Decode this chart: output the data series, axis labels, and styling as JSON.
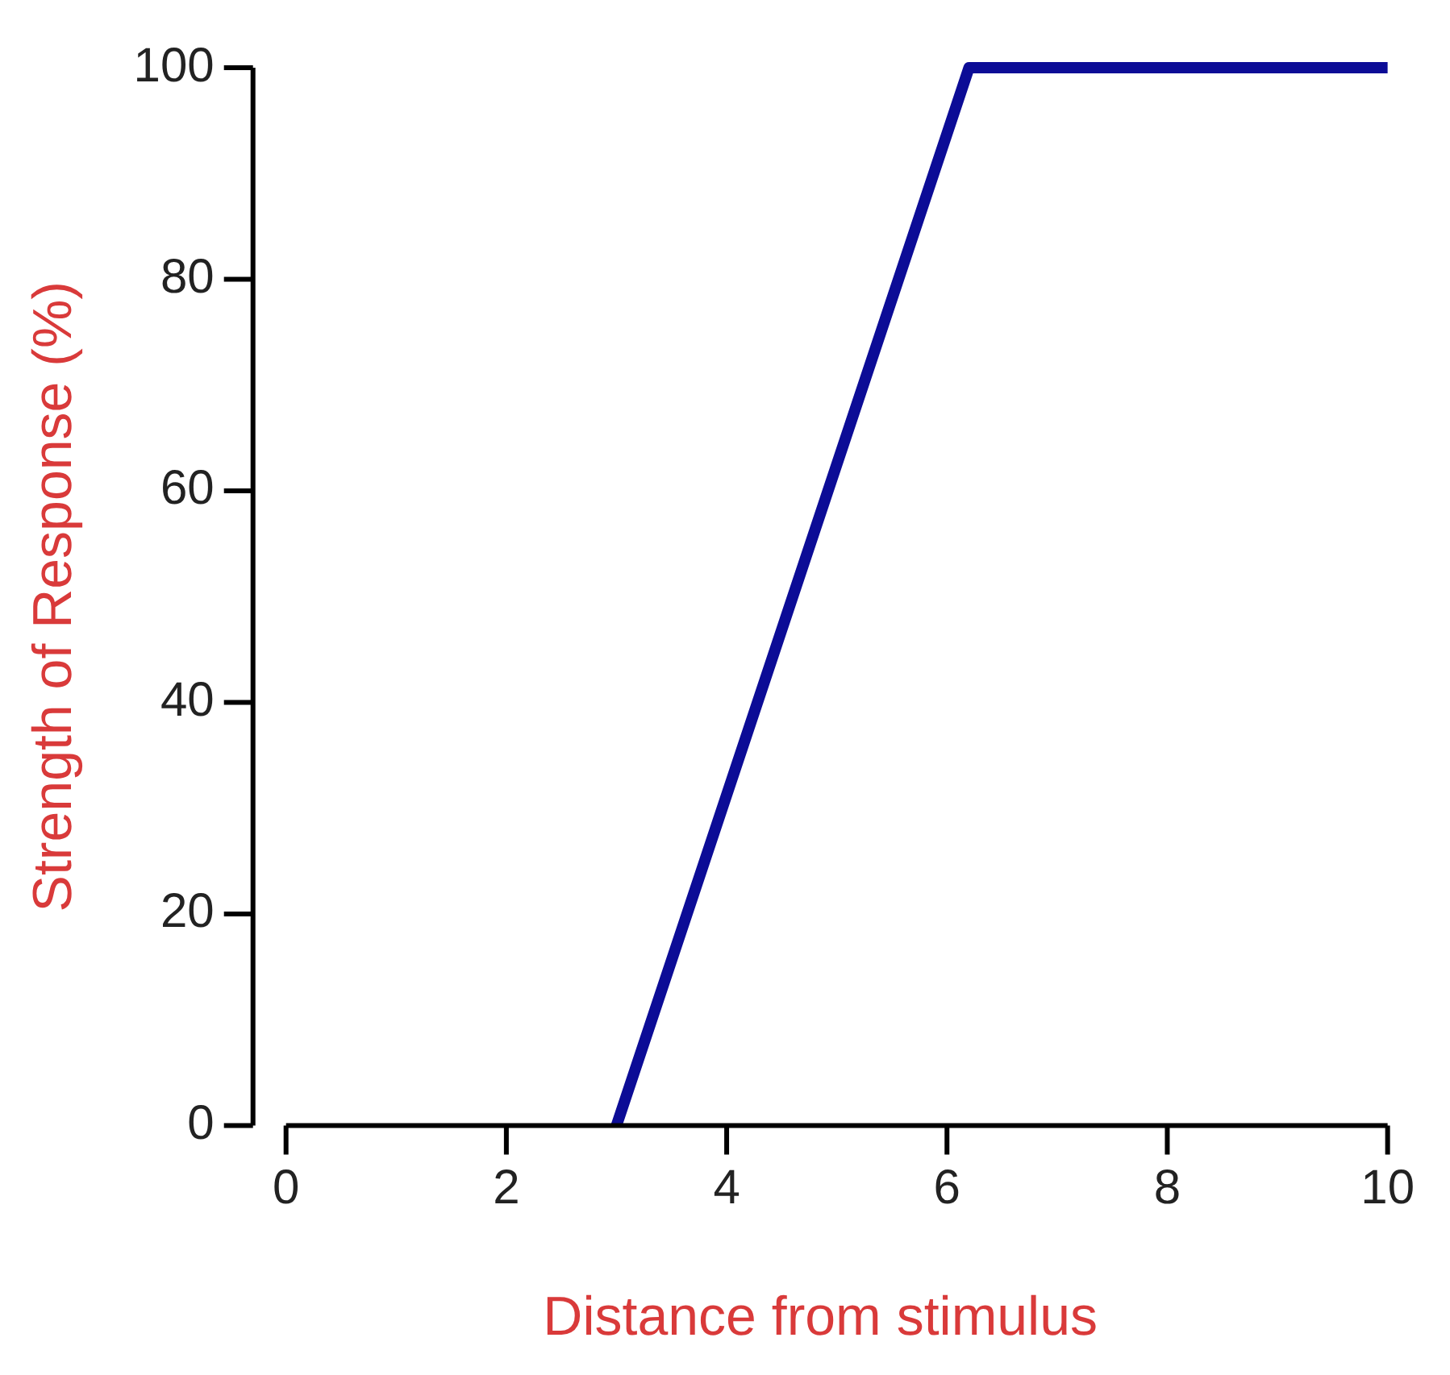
{
  "chart_data": {
    "type": "line",
    "xlabel": "Distance from stimulus",
    "ylabel": "Strength of Response (%)",
    "x": [
      3,
      6.2,
      10
    ],
    "series": [
      {
        "color": "#0c0c96",
        "values": [
          0,
          100,
          100
        ]
      }
    ],
    "xlim": [
      -0.3,
      10
    ],
    "xticks": [
      0,
      2,
      4,
      6,
      8,
      10
    ],
    "ylim": [
      0,
      100
    ],
    "yticks": [
      0,
      20,
      40,
      60,
      80,
      100
    ],
    "grid": false,
    "legend": false,
    "marker": "none",
    "line_style": "solid"
  }
}
